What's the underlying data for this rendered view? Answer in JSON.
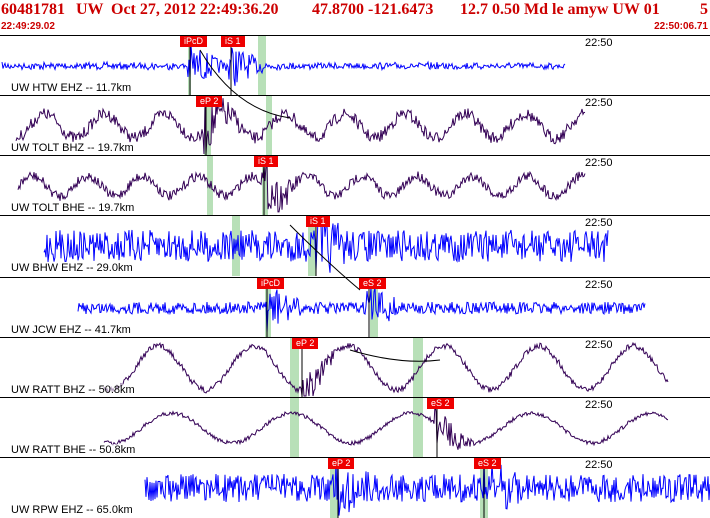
{
  "header": {
    "event_id": "60481781",
    "network": "UW",
    "datetime": "Oct 27, 2012 22:49:36.20",
    "coords": "47.8700 -121.6473",
    "details": "12.7 0.50 Md le amyw UW 01",
    "page_num": "5"
  },
  "time_range": {
    "start": "22:49:29.02",
    "end": "22:50:06.71"
  },
  "colors": {
    "header": "#cc0000",
    "trace_blue": "#0000ff",
    "trace_purple": "#330055",
    "pick": "#ee0000",
    "window": "#b8e0b8"
  },
  "panels": [
    {
      "label": "UW HTW EHZ -- 11.7km",
      "time_mark": "22:50",
      "trace_color": "blue",
      "picks": [
        {
          "label": "iPcD",
          "x": 188
        },
        {
          "label": "iS 1",
          "x": 229
        }
      ]
    },
    {
      "label": "UW TOLT BHZ -- 19.7km",
      "time_mark": "22:50",
      "trace_color": "purple",
      "picks": [
        {
          "label": "eP 2",
          "x": 204
        }
      ]
    },
    {
      "label": "UW TOLT BHE -- 19.7km",
      "time_mark": "22:50",
      "trace_color": "purple",
      "picks": [
        {
          "label": "iS 1",
          "x": 262
        }
      ]
    },
    {
      "label": "UW BHW EHZ -- 29.0km",
      "time_mark": "22:50",
      "trace_color": "blue",
      "picks": [
        {
          "label": "iS 1",
          "x": 314
        }
      ]
    },
    {
      "label": "UW JCW EHZ -- 41.7km",
      "time_mark": "22:50",
      "trace_color": "blue",
      "picks": [
        {
          "label": "iPcD",
          "x": 265
        },
        {
          "label": "eS 2",
          "x": 367
        }
      ]
    },
    {
      "label": "UW RATT BHZ -- 50.8km",
      "time_mark": "22:50",
      "trace_color": "purple",
      "picks": [
        {
          "label": "eP 2",
          "x": 300
        }
      ]
    },
    {
      "label": "UW RATT BHE -- 50.8km",
      "time_mark": "22:50",
      "trace_color": "purple",
      "picks": [
        {
          "label": "eS 2",
          "x": 435
        }
      ]
    },
    {
      "label": "UW RPW EHZ -- 65.0km",
      "time_mark": "22:50",
      "trace_color": "blue",
      "picks": [
        {
          "label": "eP 2",
          "x": 336
        },
        {
          "label": "eS 2",
          "x": 482
        }
      ]
    }
  ]
}
